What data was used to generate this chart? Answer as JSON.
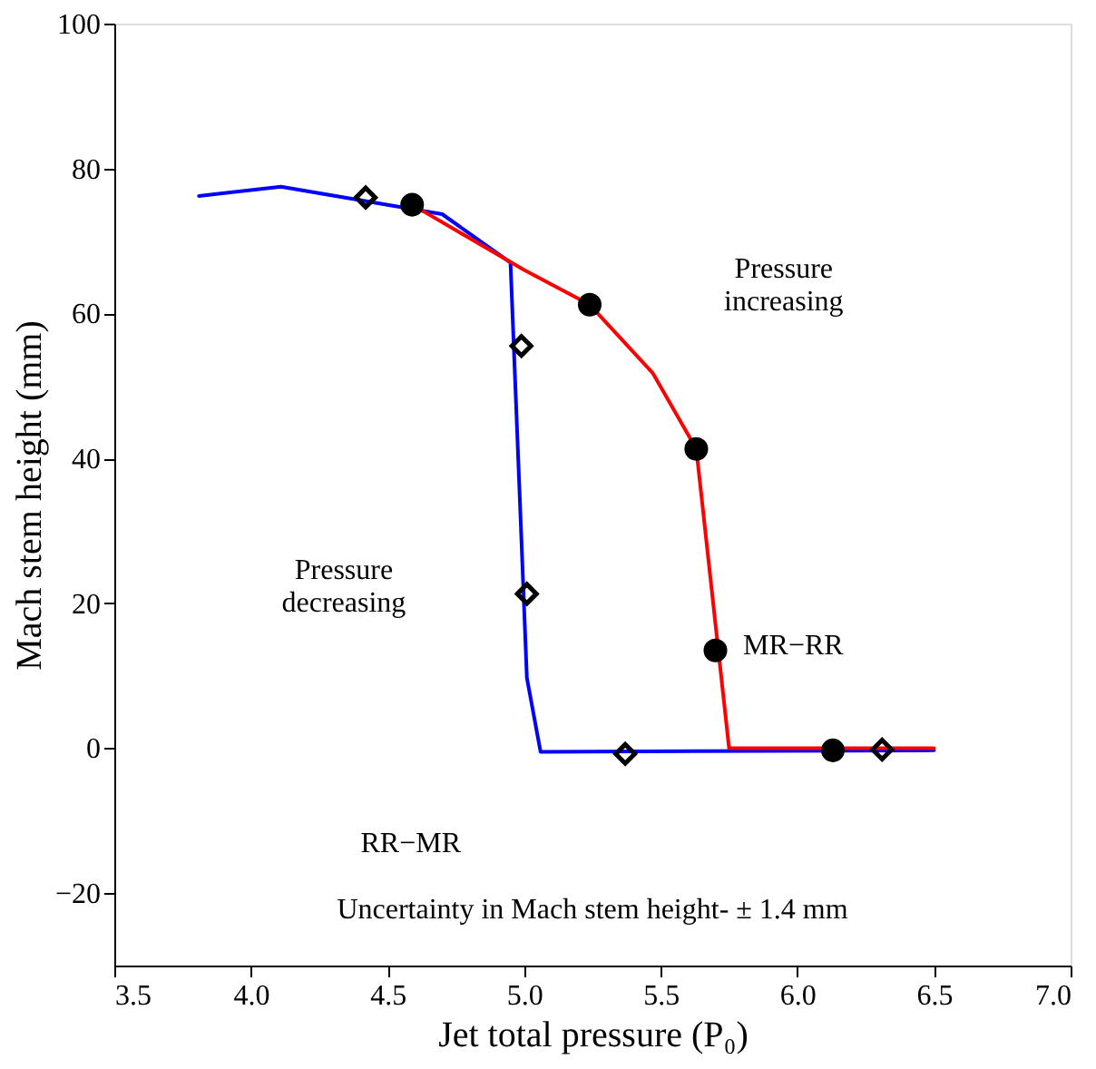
{
  "chart_data": {
    "type": "line",
    "xlabel": "Jet total pressure (P₀)",
    "ylabel": "Mach stem height (mm)",
    "xlim": [
      3.5,
      7.0
    ],
    "xticks": [
      3.5,
      {
        "value": 4,
        "label": "4.0"
      },
      4.5,
      {
        "value": 5,
        "label": "5.0"
      },
      5.5,
      {
        "value": 6,
        "label": "6.0"
      },
      6.5,
      {
        "value": 7,
        "label": "7.0"
      }
    ],
    "ylim": [
      -30,
      100
    ],
    "yticks": [
      -20,
      0,
      20,
      40,
      60,
      80,
      100
    ],
    "grid": false,
    "series": [
      {
        "type": "line",
        "color": "#0000ff",
        "x": [
          3.81,
          4.11,
          4.7,
          4.95,
          5.01,
          5.06,
          6.5
        ],
        "values": [
          76.2,
          77.5,
          73.7,
          67,
          9.7,
          -0.5,
          -0.3
        ]
      },
      {
        "type": "line",
        "color": "#ff0000",
        "x": [
          4.59,
          5.0,
          5.24,
          5.47,
          5.63,
          5.75,
          6.5
        ],
        "values": [
          75,
          66,
          61.2,
          51.8,
          41.3,
          0,
          0
        ]
      },
      {
        "type": "scatter",
        "marker": "circle",
        "color": "#000000",
        "x": [
          4.59,
          5.24,
          5.63,
          5.7,
          6.13
        ],
        "values": [
          75,
          61.2,
          41.3,
          13.5,
          -0.3
        ]
      },
      {
        "type": "scatter",
        "marker": "diamond",
        "color": "#000000",
        "x": [
          4.42,
          4.99,
          5.01,
          5.37,
          6.31
        ],
        "values": [
          76,
          55.5,
          21.3,
          -0.8,
          -0.2
        ]
      }
    ],
    "annotations": [
      "Pressure\nincreasing",
      "Pressure\ndecreasing",
      "MR−RR",
      "RR−MR",
      "Uncertainty in Mach stem height- ± 1.4 mm"
    ]
  }
}
